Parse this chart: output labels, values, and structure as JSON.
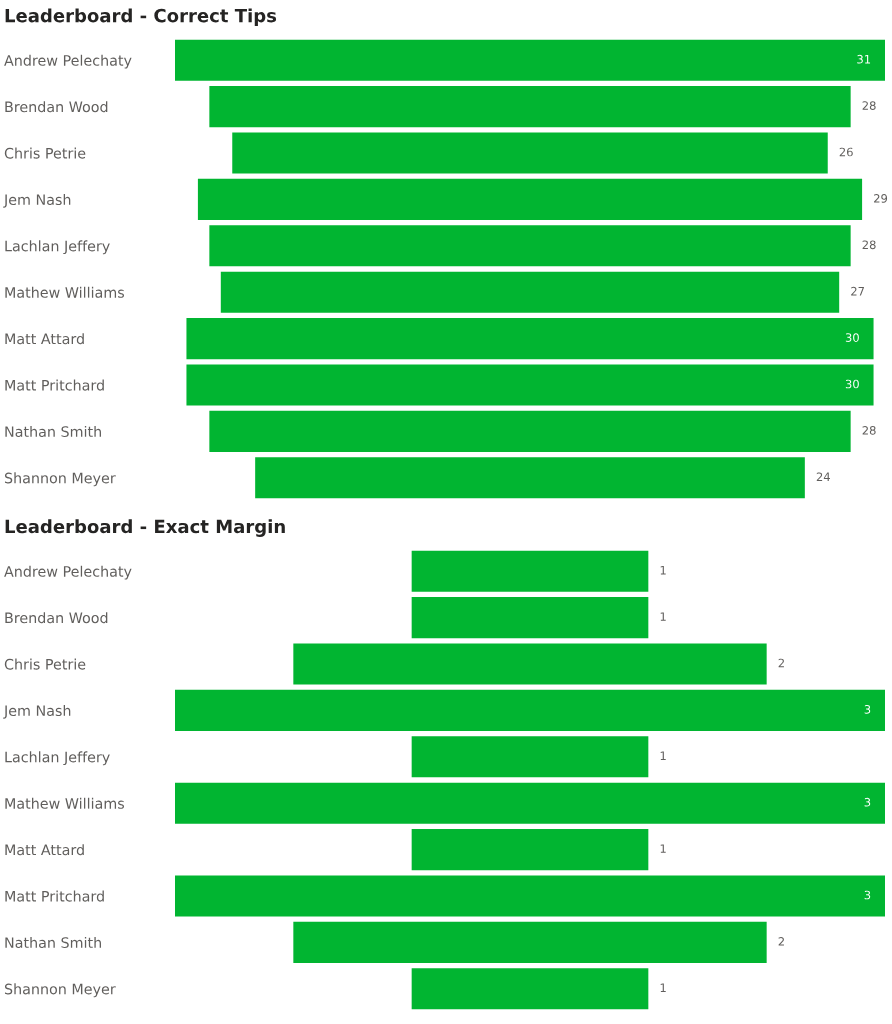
{
  "chart_data": [
    {
      "type": "other",
      "title": "Leaderboard - Correct Tips",
      "categories": [
        "Andrew Pelechaty",
        "Brendan Wood",
        "Chris Petrie",
        "Jem Nash",
        "Lachlan Jeffery",
        "Mathew Williams",
        "Matt Attard",
        "Matt Pritchard",
        "Nathan Smith",
        "Shannon Meyer"
      ],
      "values": [
        31,
        28,
        26,
        29,
        28,
        27,
        30,
        30,
        28,
        24
      ],
      "color": "#01b531",
      "data_labels": true
    },
    {
      "type": "other",
      "title": "Leaderboard - Exact Margin",
      "categories": [
        "Andrew Pelechaty",
        "Brendan Wood",
        "Chris Petrie",
        "Jem Nash",
        "Lachlan Jeffery",
        "Mathew Williams",
        "Matt Attard",
        "Matt Pritchard",
        "Nathan Smith",
        "Shannon Meyer"
      ],
      "values": [
        1,
        1,
        2,
        3,
        1,
        3,
        1,
        3,
        2,
        1
      ],
      "color": "#01b531",
      "data_labels": true
    }
  ]
}
